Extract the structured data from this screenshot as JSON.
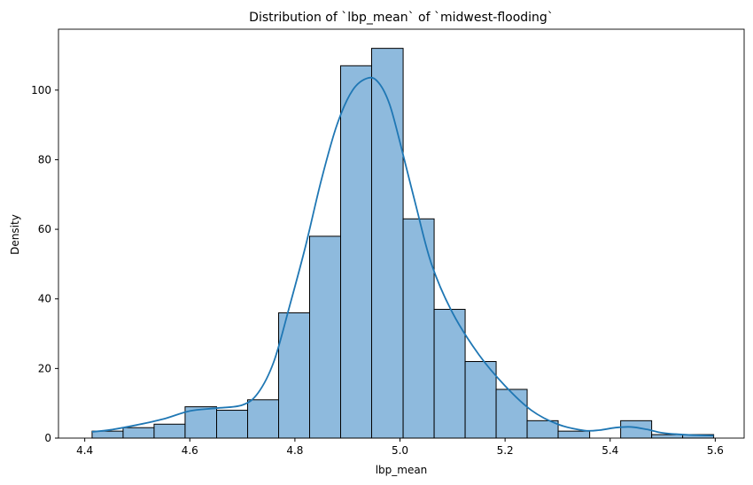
{
  "chart_data": {
    "type": "bar",
    "title": "Distribution of `lbp_mean` of `midwest-flooding`",
    "xlabel": "lbp_mean",
    "ylabel": "Density",
    "xlim": [
      4.35,
      5.655
    ],
    "ylim": [
      0,
      117.5
    ],
    "xticks": [
      "4.4",
      "4.6",
      "4.8",
      "5.0",
      "5.2",
      "5.4",
      "5.6"
    ],
    "xtick_values": [
      4.4,
      4.6,
      4.8,
      5.0,
      5.2,
      5.4,
      5.6
    ],
    "yticks": [
      "0",
      "20",
      "40",
      "60",
      "80",
      "100"
    ],
    "ytick_values": [
      0,
      20,
      40,
      60,
      80,
      100
    ],
    "grid": false,
    "bins": [
      {
        "x0": 4.414,
        "x1": 4.473,
        "value": 2
      },
      {
        "x0": 4.473,
        "x1": 4.532,
        "value": 3
      },
      {
        "x0": 4.532,
        "x1": 4.591,
        "value": 4
      },
      {
        "x0": 4.591,
        "x1": 4.651,
        "value": 9
      },
      {
        "x0": 4.651,
        "x1": 4.71,
        "value": 8
      },
      {
        "x0": 4.71,
        "x1": 4.769,
        "value": 11
      },
      {
        "x0": 4.769,
        "x1": 4.828,
        "value": 36
      },
      {
        "x0": 4.828,
        "x1": 4.887,
        "value": 58
      },
      {
        "x0": 4.887,
        "x1": 4.946,
        "value": 107
      },
      {
        "x0": 4.946,
        "x1": 5.006,
        "value": 112
      },
      {
        "x0": 5.006,
        "x1": 5.065,
        "value": 63
      },
      {
        "x0": 5.065,
        "x1": 5.124,
        "value": 37
      },
      {
        "x0": 5.124,
        "x1": 5.183,
        "value": 22
      },
      {
        "x0": 5.183,
        "x1": 5.242,
        "value": 14
      },
      {
        "x0": 5.242,
        "x1": 5.301,
        "value": 5
      },
      {
        "x0": 5.301,
        "x1": 5.361,
        "value": 2
      },
      {
        "x0": 5.361,
        "x1": 5.42,
        "value": 0
      },
      {
        "x0": 5.42,
        "x1": 5.479,
        "value": 5
      },
      {
        "x0": 5.479,
        "x1": 5.538,
        "value": 1
      },
      {
        "x0": 5.538,
        "x1": 5.597,
        "value": 1
      }
    ],
    "kde": {
      "x": [
        4.414,
        4.45,
        4.5,
        4.55,
        4.6,
        4.65,
        4.7,
        4.73,
        4.76,
        4.79,
        4.82,
        4.85,
        4.88,
        4.91,
        4.94,
        4.96,
        4.98,
        5.0,
        5.03,
        5.06,
        5.1,
        5.15,
        5.2,
        5.25,
        5.3,
        5.35,
        5.38,
        5.41,
        5.44,
        5.47,
        5.5,
        5.55,
        5.597
      ],
      "y": [
        1.8,
        2.4,
        3.8,
        5.5,
        7.8,
        8.6,
        9.5,
        13,
        22,
        38,
        55,
        74,
        90,
        100,
        103.5,
        102,
        96,
        85,
        67,
        50,
        36,
        24,
        15,
        8,
        4,
        2.2,
        2.3,
        3.0,
        3.2,
        2.5,
        1.5,
        0.9,
        0.7
      ]
    },
    "colors": {
      "bar_fill": "#8ebadd",
      "bar_edge": "#000000",
      "kde_line": "#1f77b4"
    }
  }
}
